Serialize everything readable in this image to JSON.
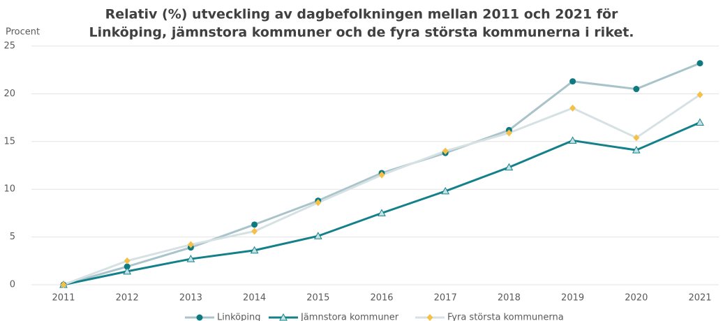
{
  "chart_data": {
    "type": "line",
    "title": [
      "Relativ (%) utveckling av dagbefolkningen mellan 2011 och 2021 för",
      "Linköping, jämnstora kommuner och de fyra största kommunerna i riket."
    ],
    "y_label": "Procent",
    "categories": [
      "2011",
      "2012",
      "2013",
      "2014",
      "2015",
      "2016",
      "2017",
      "2018",
      "2019",
      "2020",
      "2021"
    ],
    "series": [
      {
        "name": "Linköping",
        "color": "#a9c3cb",
        "marker": "circle",
        "marker_color": "#0e7a80",
        "values": [
          0,
          1.9,
          3.9,
          6.3,
          8.8,
          11.7,
          13.8,
          16.2,
          21.3,
          20.5,
          23.2
        ]
      },
      {
        "name": "Jämnstora kommuner",
        "color": "#13808a",
        "marker": "triangle",
        "marker_color": "#c5e3e3",
        "values": [
          0,
          1.4,
          2.7,
          3.6,
          5.1,
          7.5,
          9.8,
          12.3,
          15.1,
          14.1,
          17.0
        ]
      },
      {
        "name": "Fyra största kommunerna",
        "color": "#d6e1e4",
        "marker": "diamond",
        "marker_color": "#f5c04a",
        "values": [
          0,
          2.5,
          4.2,
          5.6,
          8.6,
          11.5,
          14.0,
          15.9,
          18.5,
          15.4,
          19.9
        ]
      }
    ],
    "ylim": [
      0,
      25
    ],
    "yticks": [
      0,
      5,
      10,
      15,
      20,
      25
    ],
    "grid": true,
    "legend": "bottom"
  }
}
